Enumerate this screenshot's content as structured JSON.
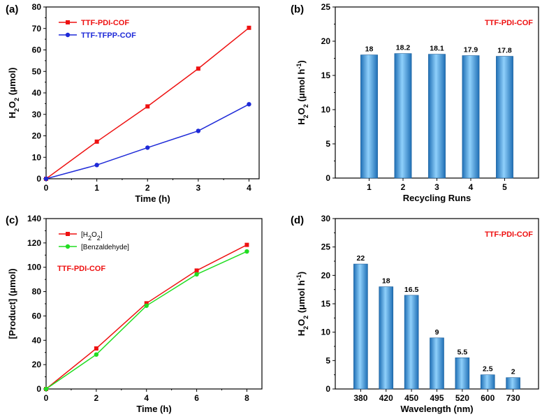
{
  "chart_data": [
    {
      "id": "a",
      "panel_label": "(a)",
      "type": "line",
      "xlabel": "Time (h)",
      "ylabel_parts": [
        "H",
        "2",
        "O",
        "2",
        " (μmol)"
      ],
      "xlim": [
        0,
        4.2
      ],
      "ylim": [
        0,
        80
      ],
      "xticks": [
        0,
        1,
        2,
        3,
        4
      ],
      "yticks": [
        0,
        10,
        20,
        30,
        40,
        50,
        60,
        70,
        80
      ],
      "legend_position": "top-left",
      "grid": false,
      "series": [
        {
          "name": "TTF-PDI-COF",
          "color": "#ee1111",
          "marker": "square",
          "x": [
            0,
            1,
            2,
            3,
            4
          ],
          "y": [
            0,
            17.3,
            33.7,
            51.3,
            70.3
          ]
        },
        {
          "name": "TTF-TFPP-COF",
          "color": "#1e2ad8",
          "marker": "circle",
          "x": [
            0,
            1,
            2,
            3,
            4
          ],
          "y": [
            0,
            6.4,
            14.5,
            22.3,
            34.7
          ]
        }
      ]
    },
    {
      "id": "b",
      "panel_label": "(b)",
      "type": "bar",
      "xlabel": "Recycling Runs",
      "ylabel_parts": [
        "H",
        "2",
        "O",
        "2",
        " (μmol h",
        "-1",
        ")"
      ],
      "categories": [
        "1",
        "2",
        "3",
        "4",
        "5"
      ],
      "values": [
        18,
        18.2,
        18.1,
        17.9,
        17.8
      ],
      "data_labels": [
        "18",
        "18.2",
        "18.1",
        "17.9",
        "17.8"
      ],
      "ylim": [
        0,
        25
      ],
      "yticks": [
        0,
        5,
        10,
        15,
        20,
        25
      ],
      "annotation": "TTF-PDI-COF",
      "annotation_position": "top-right",
      "bar_color": "#4a9fdc",
      "grid": false
    },
    {
      "id": "c",
      "panel_label": "(c)",
      "type": "line",
      "xlabel": "Time (h)",
      "ylabel_parts": [
        "[Product] (μmol)"
      ],
      "xlim": [
        0,
        8.6
      ],
      "ylim": [
        0,
        140
      ],
      "xticks": [
        0,
        2,
        4,
        6,
        8
      ],
      "yticks": [
        0,
        20,
        40,
        60,
        80,
        100,
        120,
        140
      ],
      "legend_position": "top-left",
      "annotation": "TTF-PDI-COF",
      "annotation_position": "upper-left",
      "grid": false,
      "series": [
        {
          "name_parts": [
            "[H",
            "2",
            "O",
            "2",
            "]"
          ],
          "color": "#ee1111",
          "marker": "square",
          "x": [
            0,
            2,
            4,
            6,
            8
          ],
          "y": [
            0,
            33.3,
            70.4,
            97.3,
            118.4
          ]
        },
        {
          "name_parts": [
            "[Benzaldehyde]"
          ],
          "color": "#22dd22",
          "marker": "circle",
          "x": [
            0,
            2,
            4,
            6,
            8
          ],
          "y": [
            0,
            28.3,
            68.4,
            94.2,
            113.0
          ]
        }
      ]
    },
    {
      "id": "d",
      "panel_label": "(d)",
      "type": "bar",
      "xlabel": "Wavelength (nm)",
      "ylabel_parts": [
        "H",
        "2",
        "O",
        "2",
        " (μmol h",
        "-1",
        ")"
      ],
      "categories": [
        "380",
        "420",
        "450",
        "495",
        "520",
        "600",
        "730"
      ],
      "values": [
        22,
        18,
        16.5,
        9,
        5.5,
        2.5,
        2
      ],
      "data_labels": [
        "22",
        "18",
        "16.5",
        "9",
        "5.5",
        "2.5",
        "2"
      ],
      "ylim": [
        0,
        30
      ],
      "yticks": [
        0,
        5,
        10,
        15,
        20,
        25,
        30
      ],
      "annotation": "TTF-PDI-COF",
      "annotation_position": "top-right",
      "bar_color": "#4a9fdc",
      "grid": false
    }
  ]
}
